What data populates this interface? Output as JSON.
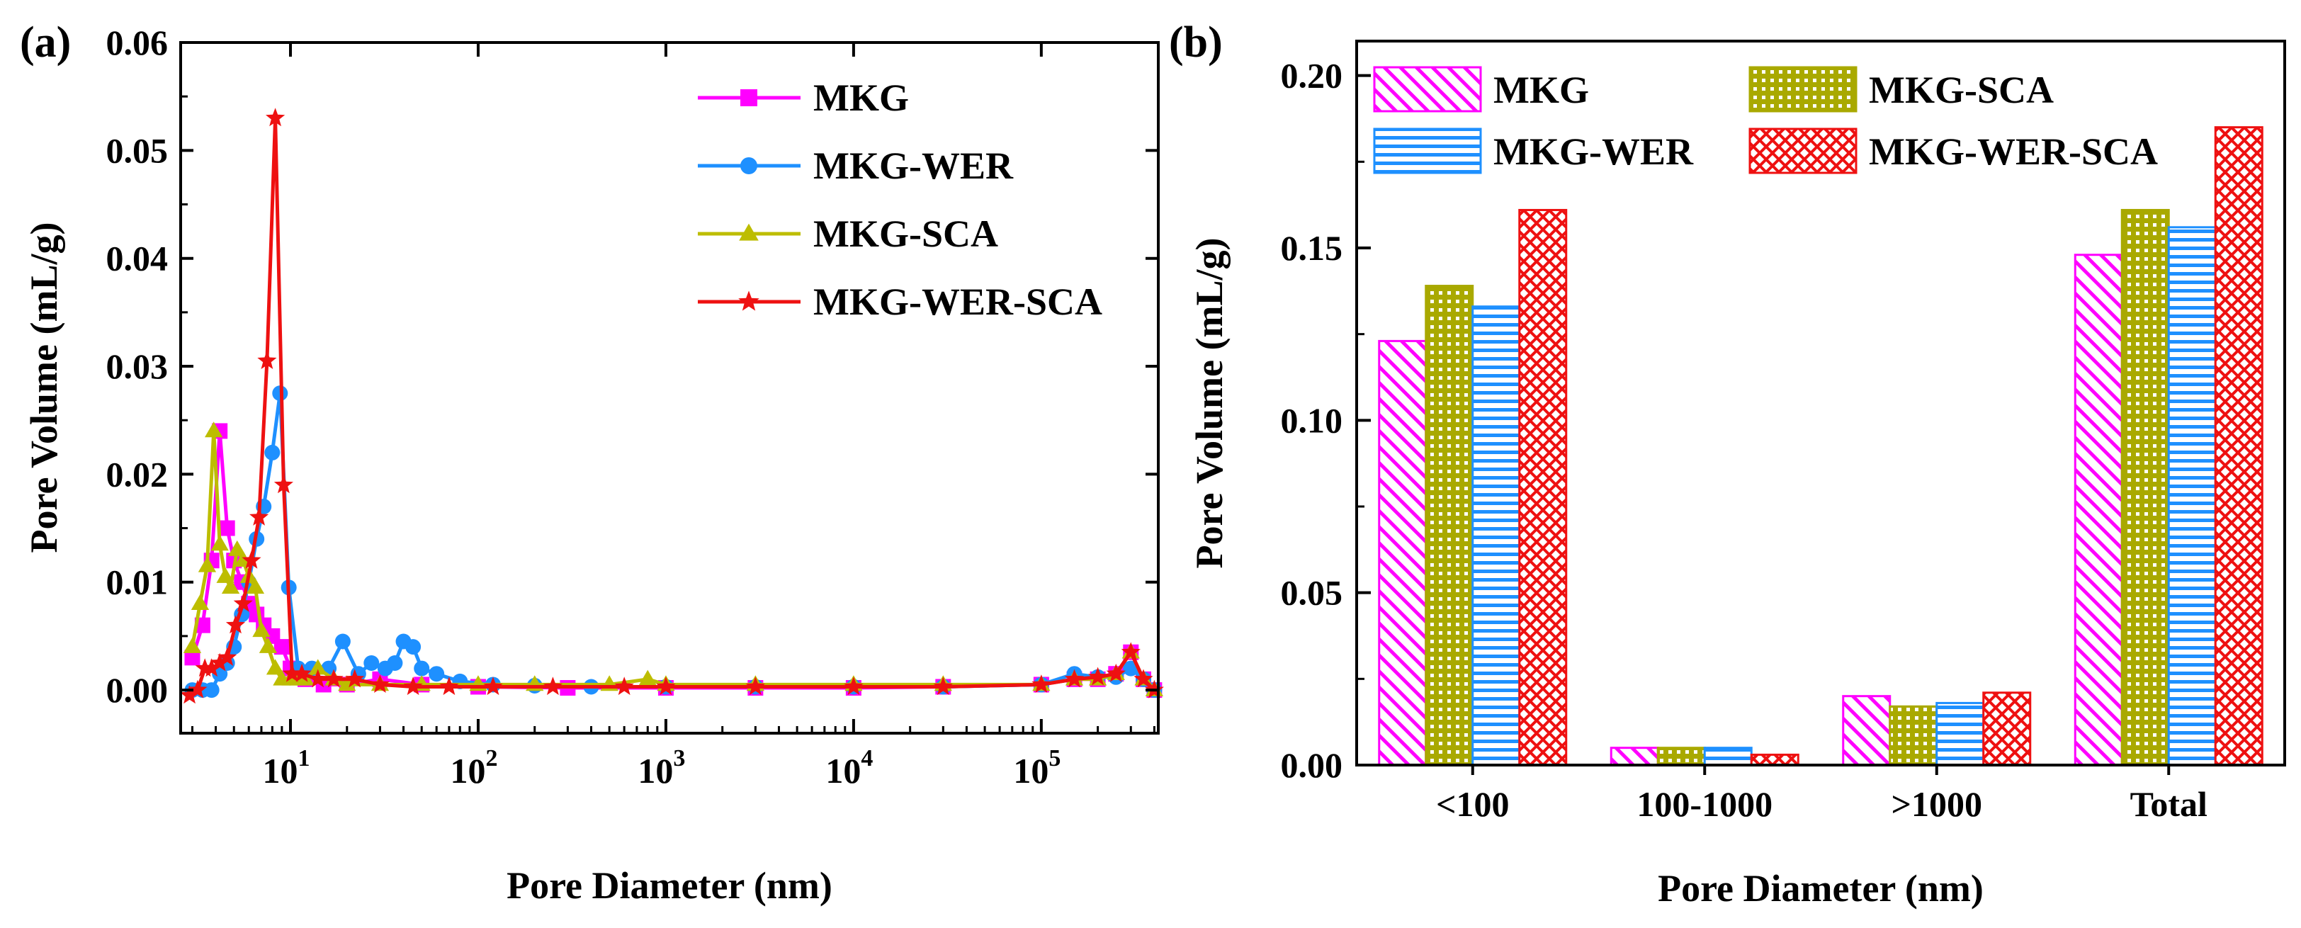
{
  "chart_data": [
    {
      "panel": "(a)",
      "type": "line",
      "xscale": "log",
      "xlabel": "Pore Diameter (nm)",
      "ylabel": "Pore Volume (mL/g)",
      "xlim": [
        2.6,
        420000
      ],
      "ylim": [
        -0.004,
        0.06
      ],
      "yticks": [
        "0.00",
        "0.01",
        "0.02",
        "0.03",
        "0.04",
        "0.05",
        "0.06"
      ],
      "xticks": [
        {
          "base": "10",
          "exp": "1"
        },
        {
          "base": "10",
          "exp": "2"
        },
        {
          "base": "10",
          "exp": "3"
        },
        {
          "base": "10",
          "exp": "4"
        },
        {
          "base": "10",
          "exp": "5"
        }
      ],
      "legend_position": "top-right",
      "series": [
        {
          "name": "MKG",
          "color": "#ff00ff",
          "marker": "square",
          "x": [
            3,
            3.4,
            3.8,
            4.2,
            4.6,
            5,
            5.5,
            6,
            6.6,
            7.2,
            8,
            9,
            10,
            12,
            15,
            20,
            30,
            50,
            100,
            300,
            1000,
            3000,
            10000,
            30000,
            100000,
            150000,
            200000,
            250000,
            300000,
            350000,
            400000
          ],
          "y": [
            0.003,
            0.006,
            0.012,
            0.024,
            0.015,
            0.012,
            0.01,
            0.008,
            0.007,
            0.006,
            0.005,
            0.004,
            0.002,
            0.001,
            0.0005,
            0.0005,
            0.001,
            0.0005,
            0.0003,
            0.0002,
            0.0002,
            0.0002,
            0.0002,
            0.0003,
            0.0005,
            0.001,
            0.001,
            0.0015,
            0.0035,
            0.001,
            0.0
          ]
        },
        {
          "name": "MKG-WER",
          "color": "#1e90ff",
          "marker": "circle",
          "x": [
            3,
            3.4,
            3.8,
            4.2,
            4.6,
            5,
            5.5,
            6,
            6.6,
            7.2,
            8,
            8.8,
            9.8,
            11,
            13,
            16,
            19,
            23,
            27,
            32,
            36,
            40,
            45,
            50,
            60,
            80,
            120,
            200,
            400,
            1000,
            3000,
            10000,
            30000,
            100000,
            150000,
            200000,
            250000,
            300000,
            350000,
            400000
          ],
          "y": [
            0.0,
            0.0,
            0.0,
            0.0015,
            0.0025,
            0.004,
            0.007,
            0.01,
            0.014,
            0.017,
            0.022,
            0.0275,
            0.0095,
            0.002,
            0.002,
            0.002,
            0.0045,
            0.0015,
            0.0025,
            0.002,
            0.0025,
            0.0045,
            0.004,
            0.002,
            0.0015,
            0.0008,
            0.0005,
            0.0004,
            0.0003,
            0.0003,
            0.0003,
            0.0003,
            0.0003,
            0.0005,
            0.0015,
            0.0012,
            0.0012,
            0.002,
            0.001,
            0.0
          ]
        },
        {
          "name": "MKG-SCA",
          "color": "#bdbd00",
          "marker": "triangle",
          "x": [
            3,
            3.3,
            3.6,
            3.9,
            4.2,
            4.5,
            4.8,
            5.2,
            5.6,
            6,
            6.5,
            7,
            7.6,
            8.3,
            9,
            10,
            11,
            12,
            14,
            17,
            20,
            30,
            50,
            100,
            200,
            500,
            800,
            1000,
            3000,
            10000,
            30000,
            100000,
            150000,
            200000,
            250000,
            300000,
            350000,
            400000
          ],
          "y": [
            0.004,
            0.008,
            0.0115,
            0.024,
            0.0135,
            0.0105,
            0.0095,
            0.013,
            0.012,
            0.0105,
            0.0095,
            0.0055,
            0.004,
            0.002,
            0.001,
            0.001,
            0.001,
            0.001,
            0.002,
            0.001,
            0.0005,
            0.0005,
            0.0005,
            0.0005,
            0.0005,
            0.0005,
            0.001,
            0.0005,
            0.0005,
            0.0005,
            0.0005,
            0.0005,
            0.001,
            0.001,
            0.0015,
            0.0035,
            0.001,
            0.0
          ]
        },
        {
          "name": "MKG-WER-SCA",
          "color": "#ee1111",
          "marker": "star",
          "x": [
            2.9,
            3.2,
            3.5,
            3.8,
            4.2,
            4.6,
            5.1,
            5.6,
            6.2,
            6.8,
            7.5,
            8.3,
            9.2,
            10.2,
            11.5,
            14,
            17,
            22,
            30,
            45,
            70,
            120,
            250,
            600,
            1000,
            3000,
            10000,
            30000,
            100000,
            150000,
            200000,
            250000,
            300000,
            350000,
            400000
          ],
          "y": [
            -0.0005,
            0.0,
            0.002,
            0.002,
            0.0025,
            0.003,
            0.006,
            0.008,
            0.012,
            0.016,
            0.0305,
            0.053,
            0.019,
            0.0015,
            0.0015,
            0.001,
            0.001,
            0.001,
            0.0005,
            0.0003,
            0.0003,
            0.0003,
            0.0003,
            0.0003,
            0.0003,
            0.0003,
            0.0003,
            0.0003,
            0.0005,
            0.001,
            0.0012,
            0.0015,
            0.0035,
            0.001,
            0.0
          ]
        }
      ]
    },
    {
      "panel": "(b)",
      "type": "bar",
      "xlabel": "Pore Diameter (nm)",
      "ylabel": "Pore Volume (mL/g)",
      "ylim": [
        0,
        0.21
      ],
      "yticks": [
        "0.00",
        "0.05",
        "0.10",
        "0.15",
        "0.20"
      ],
      "categories": [
        "<100",
        "100-1000",
        ">1000",
        "Total"
      ],
      "legend_position": "top",
      "series": [
        {
          "name": "MKG",
          "color": "#ff00ff",
          "pattern": "diagonal",
          "values": [
            0.123,
            0.005,
            0.02,
            0.148
          ]
        },
        {
          "name": "MKG-SCA",
          "color": "#a9a900",
          "pattern": "dots",
          "values": [
            0.139,
            0.005,
            0.017,
            0.161
          ]
        },
        {
          "name": "MKG-WER",
          "color": "#1e90ff",
          "pattern": "horizontal",
          "values": [
            0.133,
            0.005,
            0.018,
            0.156
          ]
        },
        {
          "name": "MKG-WER-SCA",
          "color": "#ee1111",
          "pattern": "crosshatch",
          "values": [
            0.161,
            0.003,
            0.021,
            0.185
          ]
        }
      ]
    }
  ]
}
